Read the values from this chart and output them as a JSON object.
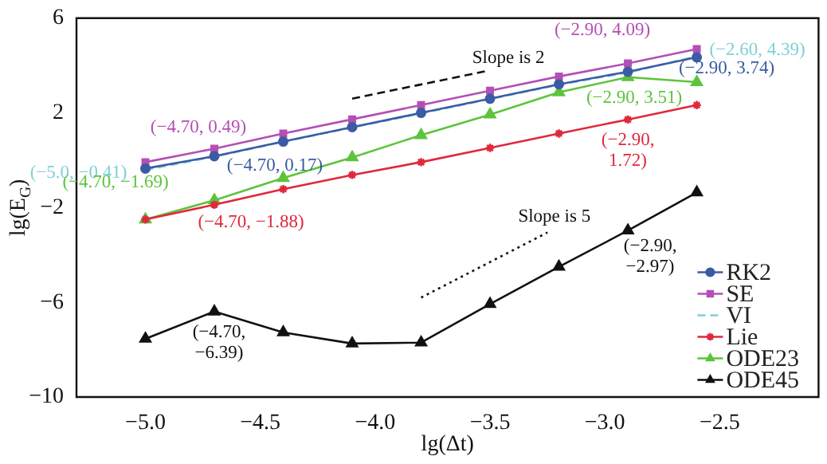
{
  "chart_data": {
    "type": "line",
    "xlabel": "lg(Δt)",
    "ylabel": "lg(E$_{G}$)",
    "x": [
      -5.0,
      -4.7,
      -4.4,
      -4.1,
      -3.8,
      -3.5,
      -3.2,
      -2.9,
      -2.6
    ],
    "series": [
      {
        "name": "RK2",
        "color": "#3b5ba5",
        "marker": "circle",
        "values": [
          -0.35,
          0.17,
          0.79,
          1.4,
          2.0,
          2.6,
          3.21,
          3.74,
          4.35
        ]
      },
      {
        "name": "SE",
        "color": "#b44fb4",
        "marker": "square",
        "values": [
          -0.08,
          0.49,
          1.13,
          1.73,
          2.33,
          2.94,
          3.54,
          4.09,
          4.7
        ]
      },
      {
        "name": "VI",
        "color": "#7fd0d8",
        "marker": "none",
        "line_style": "dashed",
        "values": [
          -0.41,
          0.15,
          0.78,
          1.38,
          1.98,
          2.58,
          3.19,
          3.7,
          4.39
        ]
      },
      {
        "name": "Lie",
        "color": "#e0283c",
        "marker": "cross",
        "values": [
          -2.5,
          -1.88,
          -1.22,
          -0.62,
          -0.08,
          0.52,
          1.13,
          1.72,
          2.33
        ]
      },
      {
        "name": "ODE23",
        "color": "#5cc43c",
        "marker": "triangle",
        "values": [
          -2.5,
          -1.69,
          -0.75,
          0.12,
          1.06,
          1.93,
          2.87,
          3.51,
          3.3
        ]
      },
      {
        "name": "ODE45",
        "color": "#111111",
        "marker": "triangle",
        "values": [
          -7.54,
          -6.39,
          -7.27,
          -7.74,
          -7.7,
          -6.07,
          -4.5,
          -2.97,
          -1.36
        ]
      },
      {
        "x": [
          -4.1,
          -3.52
        ],
        "color": "#111111",
        "marker": "none",
        "line_style": "dashed",
        "values": [
          2.6,
          3.76
        ]
      },
      {
        "x": [
          -3.8,
          -3.25
        ],
        "color": "#111111",
        "marker": "none",
        "line_style": "dotted",
        "values": [
          -5.8,
          -3.05
        ]
      }
    ],
    "xlim": [
      -5.3,
      -2.07
    ],
    "ylim": [
      -10,
      6
    ],
    "xticks": [
      {
        "value": -5,
        "label": "−5.0"
      },
      {
        "value": -4.5,
        "label": "−4.5"
      },
      {
        "value": -4,
        "label": "−4.0"
      },
      {
        "value": -3.5,
        "label": "−3.5"
      },
      {
        "value": -3,
        "label": "−3.0"
      },
      {
        "value": -2.5,
        "label": "−2.5"
      }
    ],
    "yticks": [
      6,
      2,
      {
        "value": -2,
        "label": "−2"
      },
      {
        "value": -6,
        "label": "−6"
      },
      {
        "value": -10,
        "label": "−10"
      }
    ],
    "grid": false,
    "legend": "bottom right",
    "annotations": [
      {
        "text": "(−4.70, 0.49)",
        "x": -4.7,
        "y": 0.49
      },
      {
        "text": "(−4.70, 0.17)",
        "x": -4.7,
        "y": 0.17
      },
      {
        "text": "(−5.0, −0.41)",
        "x": -5.0,
        "y": -0.41
      },
      {
        "text": "(−4.70, −1.69)",
        "x": -4.7,
        "y": -1.69
      },
      {
        "text": "(−4.70, −1.88)",
        "x": -4.7,
        "y": -1.88
      },
      {
        "text": "(−2.90, 4.09)",
        "x": -2.9,
        "y": 4.09
      },
      {
        "text": "(−2.60, 4.39)",
        "x": -2.6,
        "y": 4.39
      },
      {
        "text": "(−2.90, 3.74)",
        "x": -2.9,
        "y": 3.74
      },
      {
        "text": "(−2.90, 3.51)",
        "x": -2.9,
        "y": 3.51
      },
      {
        "text": "(−2.90,\n1.72)",
        "x": -2.9,
        "y": 1.72
      },
      {
        "text": "(−2.90,\n−2.97)",
        "x": -2.9,
        "y": -2.97
      },
      {
        "text": "(−4.70,\n−6.39)",
        "x": -4.7,
        "y": -6.39
      },
      "Slope is 2",
      "Slope is 5"
    ]
  }
}
